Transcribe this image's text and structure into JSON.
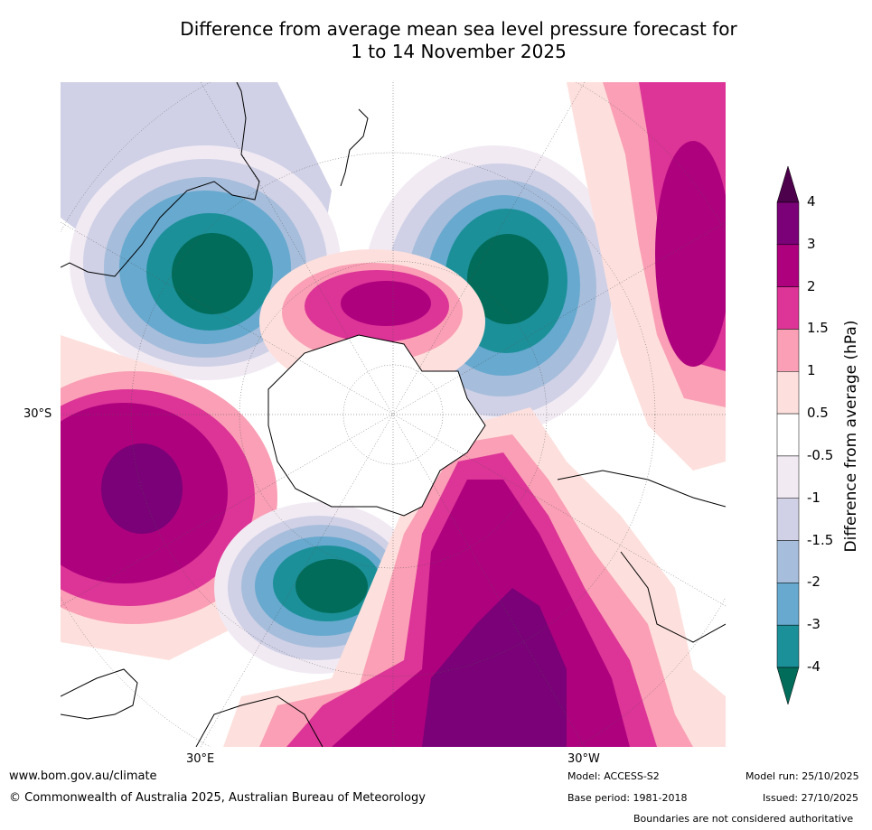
{
  "title": {
    "line1": "Difference from average mean sea level pressure forecast for",
    "line2": "1 to 14 November 2025"
  },
  "map": {
    "projection": "south-polar-stereographic",
    "lat_label": "30°S",
    "lon_label_left": "30°E",
    "lon_label_right": "30°W"
  },
  "colorbar": {
    "axis_label": "Difference from average (hPa)",
    "ticks": [
      "4",
      "3",
      "2",
      "1.5",
      "1",
      "0.5",
      "-0.5",
      "-1",
      "-1.5",
      "-2",
      "-3",
      "-4"
    ],
    "bands_top_to_bottom": [
      {
        "range": "3 to 4",
        "color": "#7a0177"
      },
      {
        "range": "2 to 3",
        "color": "#ae017e"
      },
      {
        "range": "1.5 to 2",
        "color": "#dd3497"
      },
      {
        "range": "1 to 1.5",
        "color": "#fa9fb5"
      },
      {
        "range": "0.5 to 1",
        "color": "#fde0dd"
      },
      {
        "range": "-0.5 to 0.5",
        "color": "#ffffff"
      },
      {
        "range": "-1 to -0.5",
        "color": "#f1eaf3"
      },
      {
        "range": "-1.5 to -1",
        "color": "#d0d1e6"
      },
      {
        "range": "-2 to -1.5",
        "color": "#a6bddb"
      },
      {
        "range": "-3 to -2",
        "color": "#67a9cf"
      },
      {
        "range": "-4 to -3",
        "color": "#1c9099"
      }
    ],
    "extend_high_color": "#4d004b",
    "extend_low_color": "#016c59"
  },
  "footer": {
    "website": "www.bom.gov.au/climate",
    "copyright": "© Commonwealth of Australia 2025, Australian Bureau of Meteorology",
    "model": "Model: ACCESS-S2",
    "base_period": "Base period: 1981-2018",
    "model_run": "Model run: 25/10/2025",
    "issued": "Issued: 27/10/2025",
    "disclaimer": "Boundaries are not considered authoritative"
  }
}
